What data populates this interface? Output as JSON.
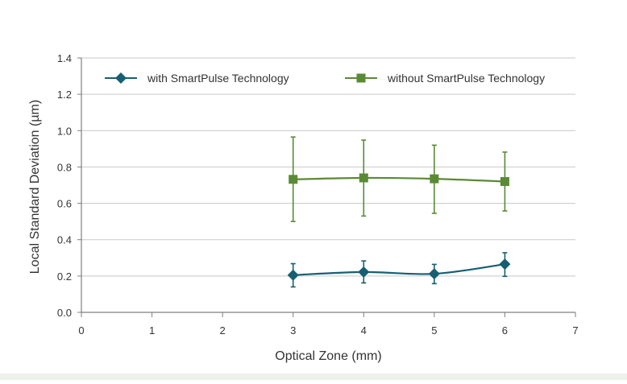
{
  "chart_data": {
    "type": "line",
    "title": "",
    "xlabel": "Optical Zone (mm)",
    "ylabel": "Local Standard Deviation (µm)",
    "xlim": [
      0,
      7
    ],
    "ylim": [
      0.0,
      1.4
    ],
    "x_ticks": [
      "0",
      "1",
      "2",
      "3",
      "4",
      "5",
      "6",
      "7"
    ],
    "y_ticks": [
      "0.0",
      "0.2",
      "0.4",
      "0.6",
      "0.8",
      "1.0",
      "1.2",
      "1.4"
    ],
    "grid": true,
    "legend_position": "top",
    "series": [
      {
        "name": "with SmartPulse Technology",
        "color": "#165f72",
        "marker": "diamond",
        "x": [
          3,
          4,
          5,
          6
        ],
        "values": [
          0.205,
          0.222,
          0.212,
          0.265
        ],
        "err_low": [
          0.14,
          0.162,
          0.158,
          0.198
        ],
        "err_high": [
          0.268,
          0.283,
          0.264,
          0.328
        ]
      },
      {
        "name": "without SmartPulse Technology",
        "color": "#5a8a35",
        "marker": "square",
        "x": [
          3,
          4,
          5,
          6
        ],
        "values": [
          0.732,
          0.74,
          0.735,
          0.72
        ],
        "err_low": [
          0.5,
          0.53,
          0.545,
          0.558
        ],
        "err_high": [
          0.965,
          0.948,
          0.92,
          0.882
        ]
      }
    ]
  }
}
